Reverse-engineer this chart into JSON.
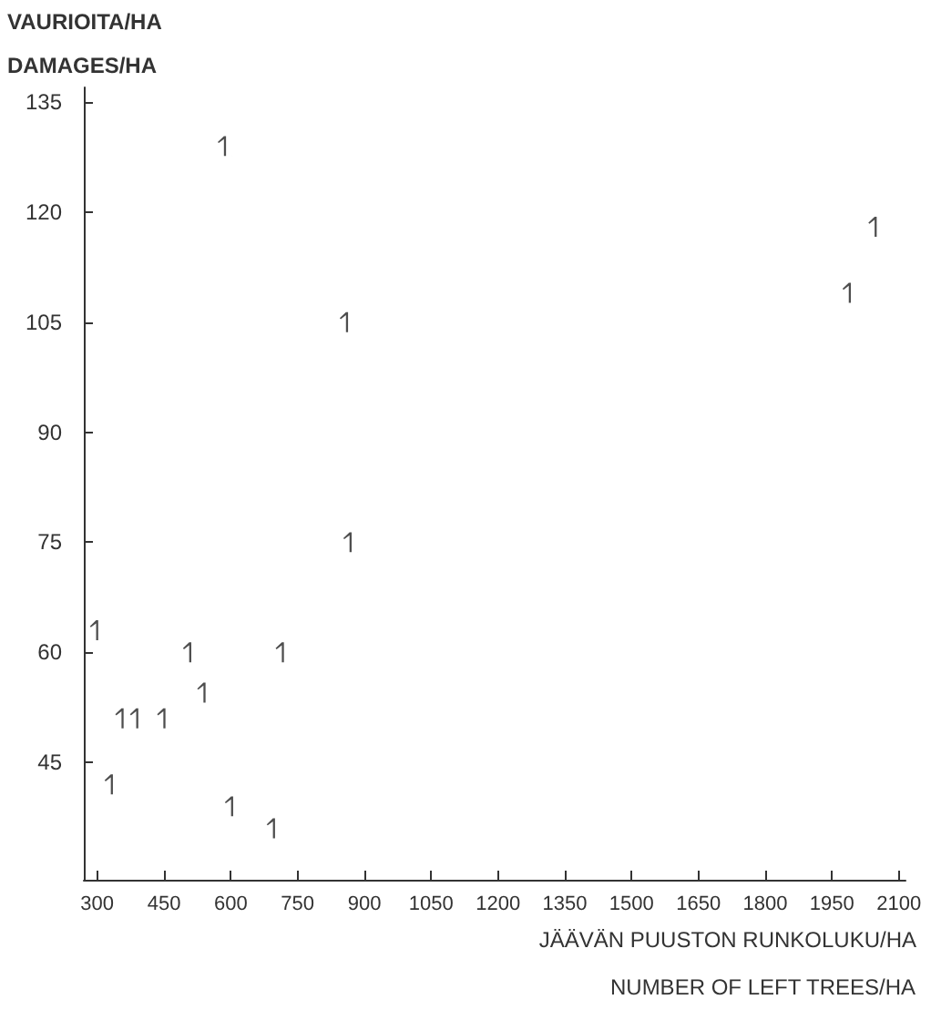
{
  "chart_data": {
    "type": "scatter",
    "ylabel": "VAURIOITA/HA\nDAMAGES/HA",
    "xlabel": "JÄÄVÄN PUUSTON RUNKOLUKU/HA\nNUMBER OF LEFT TREES/HA",
    "x": [
      587,
      861,
      869,
      300,
      509,
      717,
      541,
      357,
      390,
      451,
      333,
      603,
      697,
      2048,
      1990
    ],
    "values": [
      129,
      105,
      75,
      63,
      60,
      60,
      54.5,
      51,
      51,
      51,
      42,
      39,
      36,
      118,
      109
    ],
    "color": "#222222",
    "xlim": [
      270,
      2115
    ],
    "xticks": [
      300,
      450,
      600,
      750,
      900,
      1050,
      1200,
      1350,
      1500,
      1650,
      1800,
      1950,
      2100
    ],
    "ylim": [
      29,
      137
    ],
    "yticks": [
      45,
      60,
      75,
      90,
      105,
      120,
      135
    ],
    "grid": false
  }
}
